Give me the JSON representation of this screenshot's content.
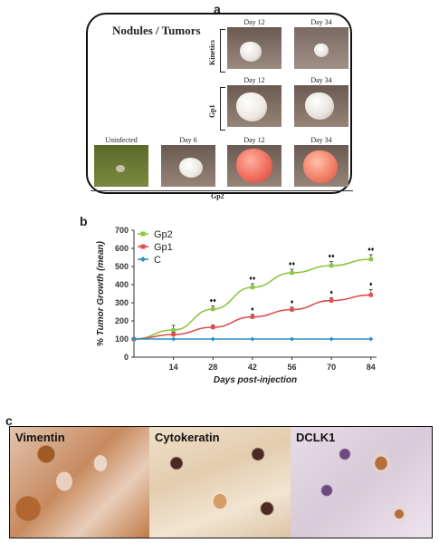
{
  "panel_a": {
    "letter": "a",
    "title": "Nodules / Tumors",
    "rows": {
      "kinetics": {
        "label": "Kinetics",
        "days": [
          "Day 12",
          "Day 34"
        ]
      },
      "gp1": {
        "label": "Gp1",
        "days": [
          "Day 12",
          "Day 34"
        ]
      },
      "gp2": {
        "label": "Gp2",
        "days": [
          "Uninfected",
          "Day 6",
          "Day 12",
          "Day 34"
        ]
      }
    }
  },
  "panel_b": {
    "letter": "b",
    "chart_data": {
      "type": "line",
      "title": "",
      "xlabel": "Days post-injection",
      "ylabel": "% Tumor Growth (mean)",
      "x": [
        0,
        14,
        28,
        42,
        56,
        70,
        84
      ],
      "xticks": [
        "14",
        "28",
        "42",
        "56",
        "70",
        "84"
      ],
      "ylim": [
        0,
        700
      ],
      "yticks": [
        "0",
        "100",
        "200",
        "300",
        "400",
        "500",
        "600",
        "700"
      ],
      "legend_position": "top-left",
      "series": [
        {
          "name": "Gp2",
          "color": "#8cc63f",
          "values": [
            100,
            150,
            265,
            385,
            465,
            505,
            540
          ],
          "errors": [
            0,
            25,
            18,
            20,
            20,
            22,
            25
          ],
          "markers": [
            "",
            "",
            "♦♦",
            "♦♦",
            "♦♦",
            "♦♦",
            "♦♦"
          ]
        },
        {
          "name": "Gp1",
          "color": "#e04c4c",
          "values": [
            100,
            125,
            165,
            222,
            262,
            312,
            343
          ],
          "errors": [
            0,
            12,
            12,
            14,
            14,
            16,
            30
          ],
          "markers": [
            "",
            "",
            "",
            "♦",
            "♦",
            "♦",
            "♦"
          ]
        },
        {
          "name": "C",
          "color": "#2a8fc9",
          "values": [
            100,
            100,
            100,
            100,
            100,
            100,
            100
          ],
          "errors": [
            0,
            0,
            0,
            0,
            0,
            0,
            0
          ],
          "markers": [
            "",
            "",
            "",
            "",
            "",
            "",
            ""
          ]
        }
      ]
    }
  },
  "panel_c": {
    "letter": "c",
    "stains": [
      "Vimentin",
      "Cytokeratin",
      "DCLK1"
    ]
  }
}
